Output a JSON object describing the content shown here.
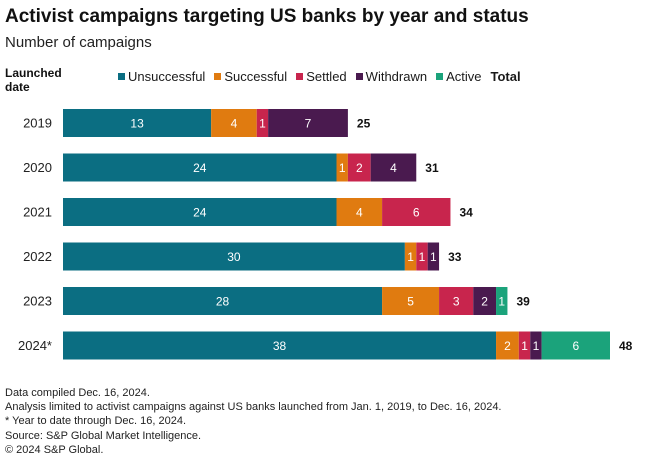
{
  "title": "Activist campaigns targeting US banks by year and status",
  "subtitle": "Number of campaigns",
  "axis_label": "Launched date",
  "legend": {
    "items": [
      {
        "label": "Unsuccessful",
        "color": "#0b6e82"
      },
      {
        "label": "Successful",
        "color": "#e07b10"
      },
      {
        "label": "Settled",
        "color": "#c8254d"
      },
      {
        "label": "Withdrawn",
        "color": "#4a1a4f"
      },
      {
        "label": "Active",
        "color": "#1ba37b"
      }
    ],
    "total_label": "Total"
  },
  "chart_data": {
    "type": "bar",
    "orientation": "horizontal",
    "stacked": true,
    "title": "Activist campaigns targeting US banks by year and status",
    "subtitle": "Number of campaigns",
    "ylabel": "Launched date",
    "categories": [
      "2019",
      "2020",
      "2021",
      "2022",
      "2023",
      "2024*"
    ],
    "series": [
      {
        "name": "Unsuccessful",
        "color": "#0b6e82",
        "values": [
          13,
          24,
          24,
          30,
          28,
          38
        ]
      },
      {
        "name": "Successful",
        "color": "#e07b10",
        "values": [
          4,
          1,
          4,
          1,
          5,
          2
        ]
      },
      {
        "name": "Settled",
        "color": "#c8254d",
        "values": [
          1,
          2,
          6,
          1,
          3,
          1
        ]
      },
      {
        "name": "Withdrawn",
        "color": "#4a1a4f",
        "values": [
          7,
          4,
          0,
          1,
          2,
          1
        ]
      },
      {
        "name": "Active",
        "color": "#1ba37b",
        "values": [
          0,
          0,
          0,
          0,
          1,
          6
        ]
      }
    ],
    "totals": [
      25,
      31,
      34,
      33,
      39,
      48
    ],
    "xlim": [
      0,
      48
    ]
  },
  "footer": {
    "lines": [
      "Data compiled Dec. 16, 2024.",
      "Analysis limited to activist campaigns against US banks launched from Jan. 1, 2019, to Dec. 16, 2024.",
      "* Year to date through Dec. 16, 2024.",
      "Source: S&P Global Market Intelligence.",
      "© 2024 S&P Global."
    ]
  }
}
